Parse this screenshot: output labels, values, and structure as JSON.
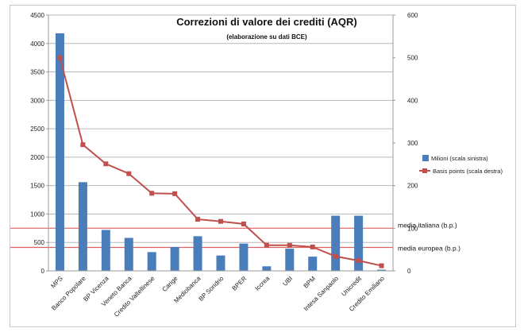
{
  "chart_data": {
    "type": "bar",
    "title": "Correzioni di valore dei crediti (AQR)",
    "subtitle": "(elaborazione su dati BCE)",
    "categories": [
      "MPS",
      "Banco Popolare",
      "BP Vicenza",
      "Veneto Banca",
      "Credito Valtellinese",
      "Carige",
      "Mediobanca",
      "BP Sondrio",
      "BPER",
      "Iccrea",
      "UBI",
      "BPM",
      "Intesa Sanpaolo",
      "Unicredit",
      "Credito Emiliano"
    ],
    "series": [
      {
        "name": "Milioni (scala sinistra)",
        "type": "bar",
        "axis": "left",
        "color": "#4a7ebb",
        "values": [
          4180,
          1560,
          720,
          580,
          330,
          420,
          610,
          270,
          480,
          80,
          390,
          250,
          970,
          970,
          20
        ]
      },
      {
        "name": "Basis points (scala destra)",
        "type": "line",
        "axis": "right",
        "color": "#c0504d",
        "values": [
          500,
          296,
          251,
          228,
          182,
          181,
          121,
          116,
          110,
          60,
          60,
          56,
          34,
          24,
          12
        ]
      }
    ],
    "y_left": {
      "min": 0,
      "max": 4500,
      "ticks": [
        "0",
        "500",
        "1000",
        "1500",
        "2000",
        "2500",
        "3000",
        "3500",
        "4000",
        "4500"
      ]
    },
    "y_right": {
      "min": 0,
      "max": 600,
      "ticks": [
        "0",
        "100",
        "200",
        "300",
        "400",
        "500",
        "600"
      ]
    },
    "reference_lines": [
      {
        "label": "media italiana (b.p.)",
        "value": 100,
        "axis": "right",
        "color": "#e06060"
      },
      {
        "label": "media europea (b.p.)",
        "value": 55,
        "axis": "right",
        "color": "#e06060"
      }
    ],
    "legend_position": "right"
  }
}
